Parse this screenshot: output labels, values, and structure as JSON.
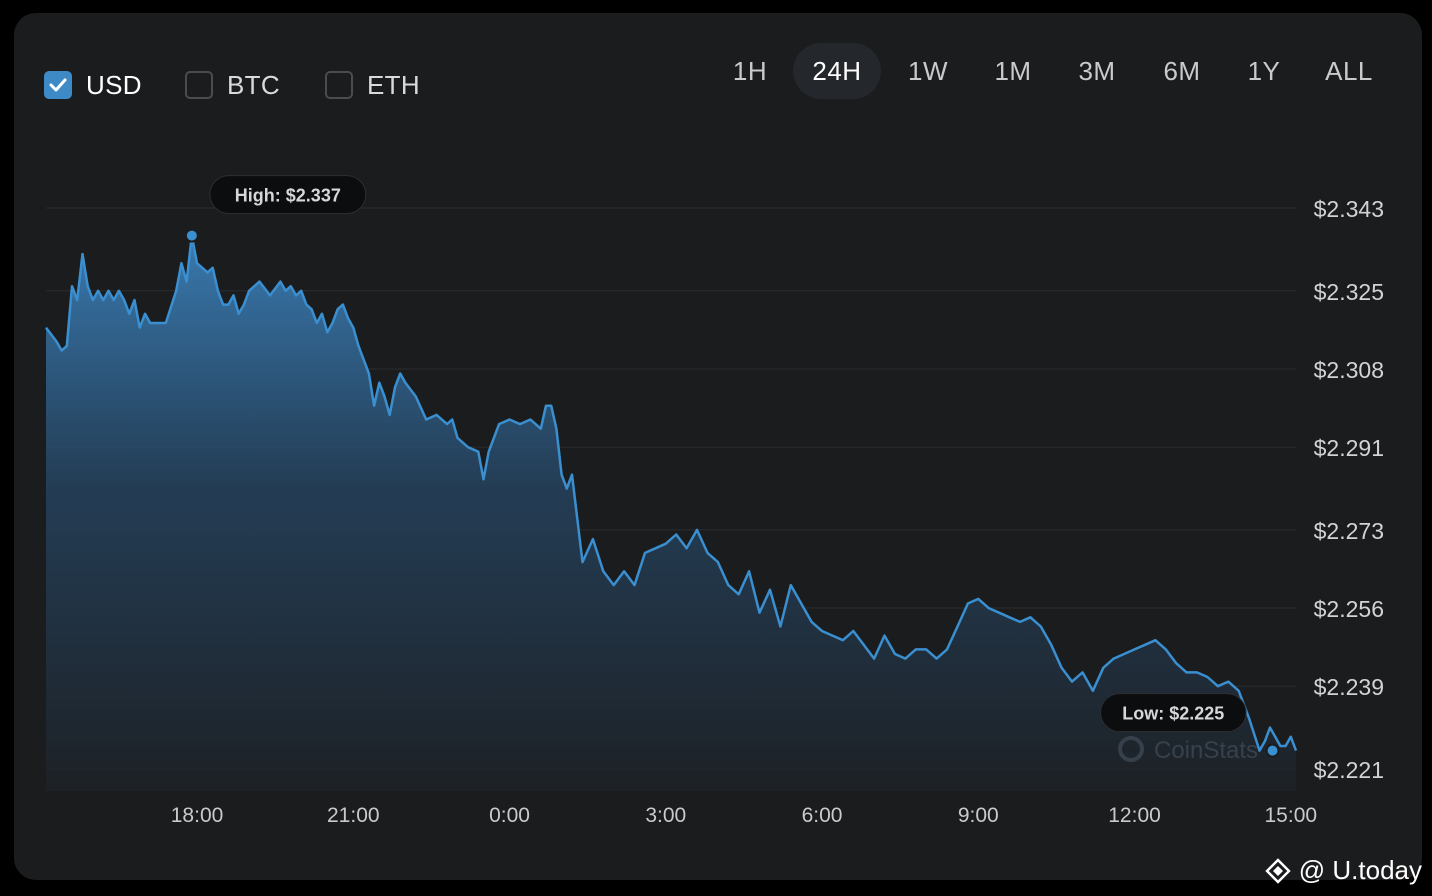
{
  "currencies": [
    {
      "label": "USD",
      "checked": true
    },
    {
      "label": "BTC",
      "checked": false
    },
    {
      "label": "ETH",
      "checked": false
    }
  ],
  "ranges": [
    {
      "label": "1H",
      "active": false
    },
    {
      "label": "24H",
      "active": true
    },
    {
      "label": "1W",
      "active": false
    },
    {
      "label": "1M",
      "active": false
    },
    {
      "label": "3M",
      "active": false
    },
    {
      "label": "6M",
      "active": false
    },
    {
      "label": "1Y",
      "active": false
    },
    {
      "label": "ALL",
      "active": false
    }
  ],
  "colors": {
    "line": "#3a8fd0",
    "accent": "#3e8ac6",
    "background": "#1b1c1d"
  },
  "chart_data": {
    "type": "area",
    "x_tick_labels": [
      "18:00",
      "21:00",
      "0:00",
      "3:00",
      "6:00",
      "9:00",
      "12:00",
      "15:00"
    ],
    "x_tick_hours": [
      18,
      21,
      24,
      27,
      30,
      33,
      36,
      39
    ],
    "y_tick_labels": [
      "$2.343",
      "$2.325",
      "$2.308",
      "$2.291",
      "$2.273",
      "$2.256",
      "$2.239",
      "$2.221"
    ],
    "y_ticks": [
      2.343,
      2.325,
      2.308,
      2.291,
      2.273,
      2.256,
      2.239,
      2.221
    ],
    "ylim": [
      2.221,
      2.343
    ],
    "xlim_hours": [
      15.1,
      39.1
    ],
    "grid": true,
    "series": [
      {
        "x_hours": [
          15.1,
          15.3,
          15.4,
          15.5,
          15.6,
          15.7,
          15.8,
          15.9,
          16.0,
          16.1,
          16.2,
          16.3,
          16.4,
          16.5,
          16.6,
          16.7,
          16.8,
          16.9,
          17.0,
          17.1,
          17.2,
          17.4,
          17.6,
          17.7,
          17.8,
          17.9,
          18.0,
          18.1,
          18.2,
          18.3,
          18.4,
          18.5,
          18.6,
          18.7,
          18.8,
          18.9,
          19.0,
          19.2,
          19.4,
          19.6,
          19.7,
          19.8,
          19.9,
          20.0,
          20.1,
          20.2,
          20.3,
          20.4,
          20.5,
          20.6,
          20.7,
          20.8,
          20.9,
          21.0,
          21.1,
          21.2,
          21.3,
          21.4,
          21.5,
          21.6,
          21.7,
          21.8,
          21.9,
          22.0,
          22.2,
          22.4,
          22.6,
          22.8,
          22.9,
          23.0,
          23.2,
          23.4,
          23.5,
          23.6,
          23.8,
          24.0,
          24.2,
          24.4,
          24.6,
          24.7,
          24.8,
          24.9,
          25.0,
          25.1,
          25.2,
          25.4,
          25.6,
          25.8,
          26.0,
          26.2,
          26.4,
          26.6,
          26.8,
          27.0,
          27.2,
          27.4,
          27.6,
          27.8,
          28.0,
          28.2,
          28.4,
          28.6,
          28.8,
          29.0,
          29.2,
          29.4,
          29.6,
          29.8,
          30.0,
          30.2,
          30.4,
          30.6,
          30.8,
          31.0,
          31.2,
          31.4,
          31.6,
          31.8,
          32.0,
          32.2,
          32.4,
          32.6,
          32.8,
          33.0,
          33.2,
          33.4,
          33.6,
          33.8,
          34.0,
          34.2,
          34.4,
          34.6,
          34.8,
          35.0,
          35.2,
          35.4,
          35.6,
          35.8,
          36.0,
          36.2,
          36.4,
          36.6,
          36.8,
          37.0,
          37.2,
          37.4,
          37.6,
          37.8,
          38.0,
          38.2,
          38.4,
          38.5,
          38.6,
          38.7,
          38.8,
          38.9,
          39.0,
          39.1
        ],
        "values": [
          2.317,
          2.314,
          2.312,
          2.313,
          2.326,
          2.323,
          2.333,
          2.326,
          2.323,
          2.325,
          2.323,
          2.325,
          2.323,
          2.325,
          2.323,
          2.32,
          2.323,
          2.317,
          2.32,
          2.318,
          2.318,
          2.318,
          2.325,
          2.331,
          2.327,
          2.337,
          2.331,
          2.33,
          2.329,
          2.33,
          2.325,
          2.322,
          2.322,
          2.324,
          2.32,
          2.322,
          2.325,
          2.327,
          2.324,
          2.327,
          2.325,
          2.326,
          2.324,
          2.325,
          2.322,
          2.321,
          2.318,
          2.32,
          2.316,
          2.318,
          2.321,
          2.322,
          2.319,
          2.317,
          2.313,
          2.31,
          2.307,
          2.3,
          2.305,
          2.302,
          2.298,
          2.304,
          2.307,
          2.305,
          2.302,
          2.297,
          2.298,
          2.296,
          2.297,
          2.293,
          2.291,
          2.29,
          2.284,
          2.29,
          2.296,
          2.297,
          2.296,
          2.297,
          2.295,
          2.3,
          2.3,
          2.295,
          2.285,
          2.282,
          2.285,
          2.266,
          2.271,
          2.264,
          2.261,
          2.264,
          2.261,
          2.268,
          2.269,
          2.27,
          2.272,
          2.269,
          2.273,
          2.268,
          2.266,
          2.261,
          2.259,
          2.264,
          2.255,
          2.26,
          2.252,
          2.261,
          2.257,
          2.253,
          2.251,
          2.25,
          2.249,
          2.251,
          2.248,
          2.245,
          2.25,
          2.246,
          2.245,
          2.247,
          2.247,
          2.245,
          2.247,
          2.252,
          2.257,
          2.258,
          2.256,
          2.255,
          2.254,
          2.253,
          2.254,
          2.252,
          2.248,
          2.243,
          2.24,
          2.242,
          2.238,
          2.243,
          2.245,
          2.246,
          2.247,
          2.248,
          2.249,
          2.247,
          2.244,
          2.242,
          2.242,
          2.241,
          2.239,
          2.24,
          2.238,
          2.232,
          2.225,
          2.227,
          2.23,
          2.228,
          2.226,
          2.226,
          2.228,
          2.225
        ]
      }
    ],
    "high": {
      "label": "High: $2.337",
      "x_hour": 17.9,
      "value": 2.337
    },
    "low": {
      "label": "Low: $2.225",
      "x_hour": 38.65,
      "value": 2.225
    }
  },
  "watermark": {
    "chart_brand": "CoinStats",
    "source": "@ U.today"
  }
}
